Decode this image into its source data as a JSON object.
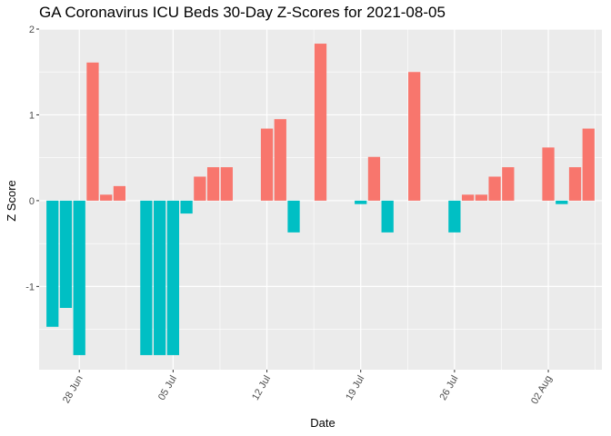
{
  "chart_data": {
    "type": "bar",
    "title": "GA Coronavirus ICU Beds 30-Day Z-Scores for 2021-08-05",
    "xlabel": "Date",
    "ylabel": "Z Score",
    "x_range": [
      "2021-06-25",
      "2021-08-06"
    ],
    "ylim": [
      -1.97,
      2.0
    ],
    "y_ticks": [
      -1,
      0,
      1,
      2
    ],
    "y_tick_labels": [
      "-1",
      "0",
      "1",
      "2"
    ],
    "x_ticks": [
      "2021-06-28",
      "2021-07-05",
      "2021-07-12",
      "2021-07-19",
      "2021-07-26",
      "2021-08-02"
    ],
    "x_tick_labels": [
      "28 Jun",
      "05 Jul",
      "12 Jul",
      "19 Jul",
      "26 Jul",
      "02 Aug"
    ],
    "grid": true,
    "legend": "none",
    "positive_color": "#F8766D",
    "negative_color": "#00BFC4",
    "panel_color": "#EBEBEB",
    "x": [
      "2021-06-26",
      "2021-06-27",
      "2021-06-28",
      "2021-06-29",
      "2021-06-30",
      "2021-07-01",
      "2021-07-02",
      "2021-07-03",
      "2021-07-04",
      "2021-07-05",
      "2021-07-06",
      "2021-07-07",
      "2021-07-08",
      "2021-07-09",
      "2021-07-10",
      "2021-07-11",
      "2021-07-12",
      "2021-07-13",
      "2021-07-14",
      "2021-07-15",
      "2021-07-16",
      "2021-07-17",
      "2021-07-18",
      "2021-07-19",
      "2021-07-20",
      "2021-07-21",
      "2021-07-22",
      "2021-07-23",
      "2021-07-24",
      "2021-07-25",
      "2021-07-26",
      "2021-07-27",
      "2021-07-28",
      "2021-07-29",
      "2021-07-30",
      "2021-07-31",
      "2021-08-01",
      "2021-08-02",
      "2021-08-03",
      "2021-08-04",
      "2021-08-05"
    ],
    "values": [
      -1.47,
      -1.25,
      -1.8,
      1.61,
      0.07,
      0.17,
      0,
      -1.8,
      -1.8,
      -1.8,
      -0.15,
      0.28,
      0.39,
      0.39,
      0,
      0,
      0.84,
      0.95,
      -0.37,
      0,
      1.83,
      0,
      0,
      -0.04,
      0.51,
      -0.37,
      0,
      1.5,
      0,
      0,
      -0.37,
      0.07,
      0.07,
      0.28,
      0.39,
      0,
      0,
      0.62,
      -0.04,
      0.39,
      0.84
    ]
  }
}
